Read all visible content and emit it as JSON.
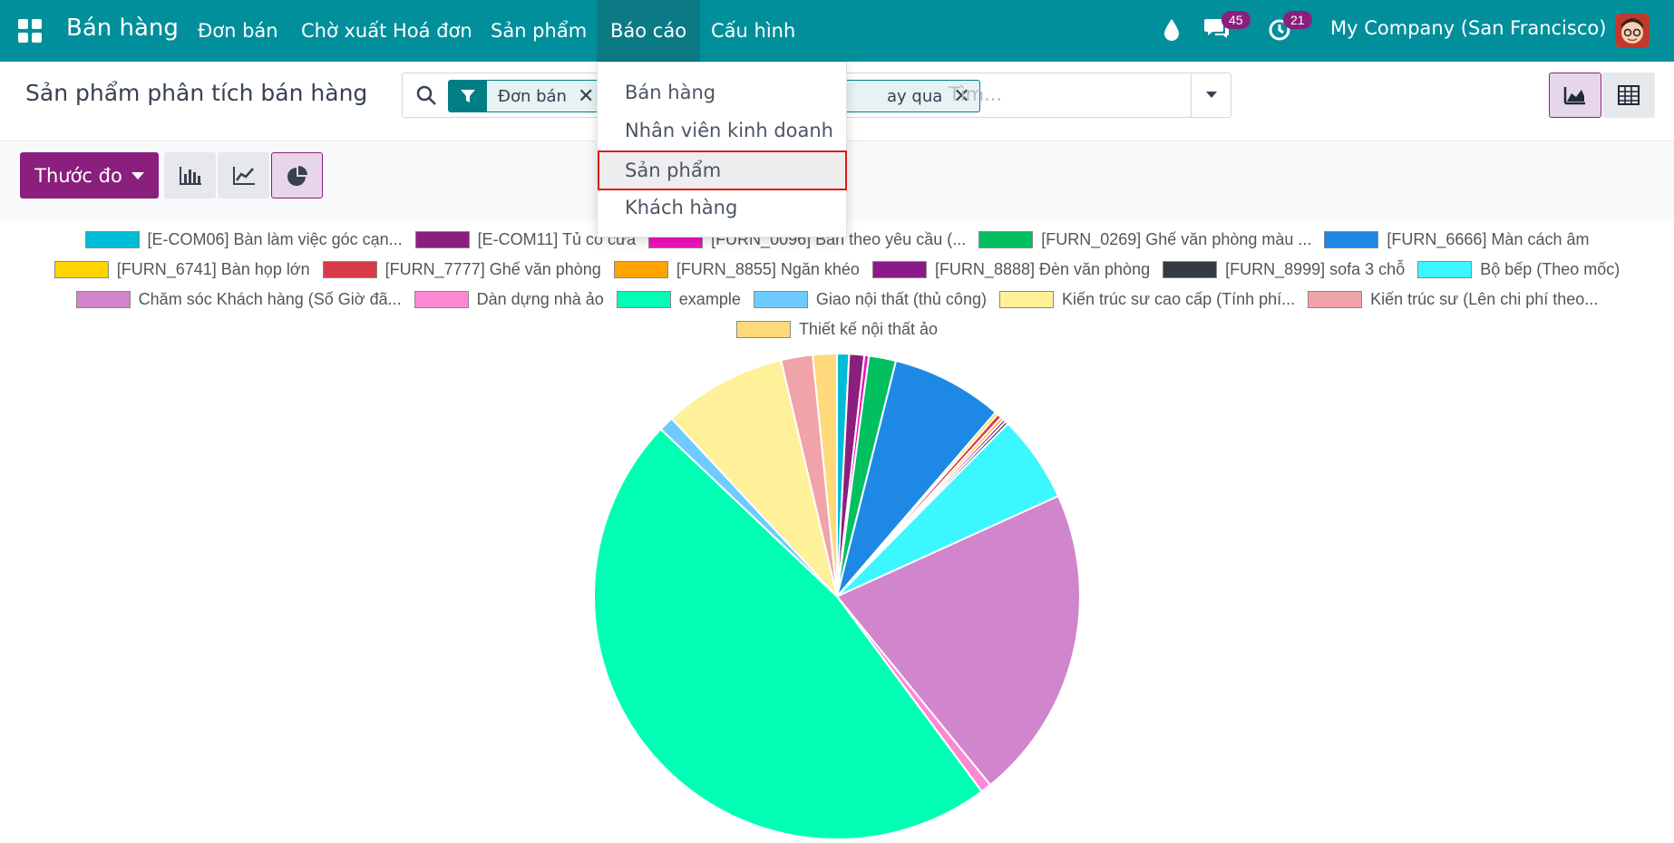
{
  "topbar": {
    "app_title": "Bán hàng",
    "menu": [
      "Đơn bán",
      "Chờ xuất Hoá đơn",
      "Sản phẩm",
      "Báo cáo",
      "Cấu hình"
    ],
    "active_menu": "Báo cáo",
    "messages_count": "45",
    "activities_count": "21",
    "company": "My Company (San Francisco)",
    "brand_color": "#018f9b"
  },
  "control": {
    "breadcrumb": "Sản phẩm phân tích bán hàng",
    "facets": [
      "Đơn bán",
      "ay qua"
    ],
    "search_placeholder": "Tìm..."
  },
  "toolbar": {
    "measure_label": "Thước đo"
  },
  "report_menu": {
    "items": [
      "Bán hàng",
      "Nhân viên kinh doanh",
      "Sản phẩm",
      "Khách hàng"
    ],
    "highlighted": "Sản phẩm"
  },
  "chart_data": {
    "type": "pie",
    "legend_placement": "top",
    "legend": [
      {
        "label": "[E-COM06] Bàn làm việc góc cạn...",
        "color": "#00bcd4"
      },
      {
        "label": "[E-COM11] Tủ có cửa",
        "color": "#8a1f7e"
      },
      {
        "label": "[FURN_0096] Bàn theo yêu cầu (...",
        "color": "#f012be"
      },
      {
        "label": "[FURN_0269] Ghế văn phòng màu ...",
        "color": "#00c060"
      },
      {
        "label": "[FURN_6666] Màn cách âm",
        "color": "#1e88e5"
      },
      {
        "label": "[FURN_6741] Bàn họp lớn",
        "color": "#ffd500"
      },
      {
        "label": "[FURN_7777] Ghế văn phòng",
        "color": "#d73a49"
      },
      {
        "label": "[FURN_8855] Ngăn khéo",
        "color": "#ffa500"
      },
      {
        "label": "[FURN_8888] Đèn văn phòng",
        "color": "#8b1a89"
      },
      {
        "label": "[FURN_8999] sofa 3 chỗ",
        "color": "#343a40"
      },
      {
        "label": "Bộ bếp (Theo mốc)",
        "color": "#3cf7ff"
      },
      {
        "label": "Chăm sóc Khách hàng (Số Giờ đã...",
        "color": "#d085cc"
      },
      {
        "label": "Dàn dựng nhà ảo",
        "color": "#ff88d5"
      },
      {
        "label": "example",
        "color": "#00ffb4"
      },
      {
        "label": "Giao nội thất (thủ công)",
        "color": "#6ecbff"
      },
      {
        "label": "Kiến trúc sư cao cấp (Tính phí...",
        "color": "#fff09a"
      },
      {
        "label": "Kiến trúc sư (Lên chi phí theo...",
        "color": "#f0a3a8"
      },
      {
        "label": "Thiết kế nội thất ảo",
        "color": "#ffd97a"
      }
    ],
    "values": [
      0.8,
      1.0,
      0.3,
      1.8,
      7.4,
      0.2,
      0.3,
      0.2,
      0.2,
      0.2,
      5.8,
      20.9,
      0.7,
      47.2,
      1.0,
      8.2,
      2.1,
      1.6
    ]
  }
}
